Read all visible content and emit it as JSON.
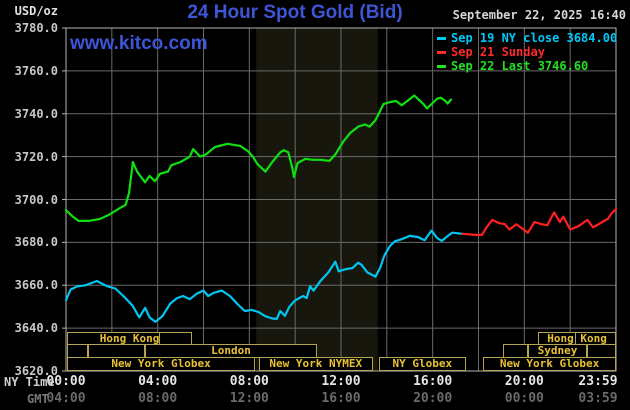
{
  "header": {
    "unit": "USD/oz",
    "title": "24 Hour Spot Gold (Bid)",
    "datetime": "September 22, 2025 16:40",
    "watermark": "www.kitco.com"
  },
  "axis": {
    "ny_time_label": "NY Time",
    "gmt_label": "GMT"
  },
  "legend": [
    {
      "label": "Sep 19 NY close 3684.00",
      "color": "#00c8f8"
    },
    {
      "label": "Sep 21 Sunday",
      "color": "#ff2a2a"
    },
    {
      "label": "Sep 22 Last 3746.60",
      "color": "#22e022"
    }
  ],
  "colors": {
    "background": "#000000",
    "title_blue": "#3e56d6",
    "grid": "#6a6a6a",
    "plot_border": "#b4b4b4",
    "session_border": "#b5a550",
    "session_text": "#e8c235",
    "nymex_band": "#17170d",
    "series_green": "#0fe00f",
    "series_cyan": "#00c6f0",
    "series_red": "#ff2020"
  },
  "chart_data": {
    "type": "line",
    "title": "24 Hour Spot Gold (Bid)",
    "xlabel": "NY Time / GMT",
    "ylabel": "USD/oz",
    "xlim": [
      0,
      24
    ],
    "ylim": [
      3620,
      3780
    ],
    "grid": true,
    "legend_position": "top-right",
    "y_ticks": [
      3780,
      3760,
      3740,
      3720,
      3700,
      3680,
      3660,
      3640,
      3620
    ],
    "x_ticks": [
      {
        "t": 0,
        "ny": "00:00",
        "gmt": "04:00"
      },
      {
        "t": 4,
        "ny": "04:00",
        "gmt": "08:00"
      },
      {
        "t": 8,
        "ny": "08:00",
        "gmt": "12:00"
      },
      {
        "t": 12,
        "ny": "12:00",
        "gmt": "16:00"
      },
      {
        "t": 16,
        "ny": "16:00",
        "gmt": "20:00"
      },
      {
        "t": 20,
        "ny": "20:00",
        "gmt": "00:00"
      },
      {
        "t": 24,
        "ny": "23:59",
        "gmt": "03:59"
      }
    ],
    "nymex_band": {
      "from": 8.3,
      "to": 13.6
    },
    "series": [
      {
        "name": "Sep 19 NY close",
        "color": "#00c6f0",
        "last": 3684.0,
        "points": [
          [
            0,
            3653
          ],
          [
            0.2,
            3658
          ],
          [
            0.5,
            3659.5
          ],
          [
            0.85,
            3660
          ],
          [
            1.35,
            3662
          ],
          [
            1.8,
            3659.5
          ],
          [
            2.15,
            3658.5
          ],
          [
            2.55,
            3654.5
          ],
          [
            2.9,
            3650.5
          ],
          [
            3.2,
            3645
          ],
          [
            3.45,
            3649.5
          ],
          [
            3.65,
            3645
          ],
          [
            3.9,
            3643
          ],
          [
            4.2,
            3645.5
          ],
          [
            4.55,
            3651.5
          ],
          [
            4.85,
            3654
          ],
          [
            5.1,
            3655
          ],
          [
            5.4,
            3653.5
          ],
          [
            5.7,
            3656
          ],
          [
            6.0,
            3657.5
          ],
          [
            6.2,
            3655
          ],
          [
            6.45,
            3656.5
          ],
          [
            6.8,
            3657.5
          ],
          [
            7.15,
            3655
          ],
          [
            7.5,
            3651
          ],
          [
            7.8,
            3648
          ],
          [
            8.1,
            3648.5
          ],
          [
            8.4,
            3647.5
          ],
          [
            8.7,
            3645.5
          ],
          [
            9.0,
            3644.5
          ],
          [
            9.2,
            3644.3
          ],
          [
            9.35,
            3648
          ],
          [
            9.55,
            3645.7
          ],
          [
            9.75,
            3650
          ],
          [
            10.0,
            3653
          ],
          [
            10.35,
            3655
          ],
          [
            10.5,
            3654
          ],
          [
            10.65,
            3659.5
          ],
          [
            10.8,
            3657.5
          ],
          [
            11.1,
            3662
          ],
          [
            11.45,
            3666
          ],
          [
            11.75,
            3671
          ],
          [
            11.9,
            3666.5
          ],
          [
            12.2,
            3667.5
          ],
          [
            12.5,
            3668
          ],
          [
            12.75,
            3670.5
          ],
          [
            12.9,
            3669.5
          ],
          [
            13.15,
            3666
          ],
          [
            13.5,
            3664
          ],
          [
            13.7,
            3668
          ],
          [
            13.9,
            3674
          ],
          [
            14.15,
            3678.5
          ],
          [
            14.35,
            3680.5
          ],
          [
            14.65,
            3681.5
          ],
          [
            15.0,
            3683
          ],
          [
            15.35,
            3682.5
          ],
          [
            15.65,
            3681
          ],
          [
            15.95,
            3685.5
          ],
          [
            16.2,
            3682
          ],
          [
            16.4,
            3680.7
          ],
          [
            16.6,
            3682.5
          ],
          [
            16.85,
            3684.5
          ],
          [
            17.3,
            3684
          ]
        ]
      },
      {
        "name": "Sep 21 Sunday",
        "color": "#ff2020",
        "points": [
          [
            17.3,
            3684
          ],
          [
            17.85,
            3683.5
          ],
          [
            18.15,
            3683.5
          ],
          [
            18.35,
            3687
          ],
          [
            18.6,
            3690.5
          ],
          [
            18.9,
            3689
          ],
          [
            19.15,
            3688.5
          ],
          [
            19.35,
            3686
          ],
          [
            19.65,
            3688.5
          ],
          [
            19.9,
            3686.5
          ],
          [
            20.15,
            3684.5
          ],
          [
            20.45,
            3689.5
          ],
          [
            20.75,
            3688.5
          ],
          [
            21.0,
            3688
          ],
          [
            21.3,
            3694
          ],
          [
            21.55,
            3689.5
          ],
          [
            21.7,
            3692
          ],
          [
            22.0,
            3686
          ],
          [
            22.35,
            3687.5
          ],
          [
            22.75,
            3690.5
          ],
          [
            23.0,
            3687
          ],
          [
            23.4,
            3689.5
          ],
          [
            23.65,
            3691
          ],
          [
            23.8,
            3693.5
          ],
          [
            24,
            3695.5
          ]
        ]
      },
      {
        "name": "Sep 22 Last",
        "color": "#0fe00f",
        "last": 3746.6,
        "points": [
          [
            0,
            3695
          ],
          [
            0.3,
            3692
          ],
          [
            0.55,
            3690
          ],
          [
            1.0,
            3690
          ],
          [
            1.5,
            3691
          ],
          [
            1.9,
            3693
          ],
          [
            2.35,
            3696
          ],
          [
            2.6,
            3697.5
          ],
          [
            2.75,
            3703
          ],
          [
            2.92,
            3717.5
          ],
          [
            3.1,
            3713
          ],
          [
            3.45,
            3708
          ],
          [
            3.65,
            3711
          ],
          [
            3.88,
            3708.5
          ],
          [
            4.1,
            3712
          ],
          [
            4.45,
            3713
          ],
          [
            4.6,
            3716
          ],
          [
            5.0,
            3717.5
          ],
          [
            5.4,
            3720
          ],
          [
            5.55,
            3723.5
          ],
          [
            5.85,
            3720
          ],
          [
            6.1,
            3721
          ],
          [
            6.5,
            3724.5
          ],
          [
            7.05,
            3726
          ],
          [
            7.6,
            3725
          ],
          [
            7.95,
            3722.5
          ],
          [
            8.15,
            3720
          ],
          [
            8.35,
            3716.5
          ],
          [
            8.7,
            3713
          ],
          [
            9.0,
            3717.5
          ],
          [
            9.35,
            3722
          ],
          [
            9.5,
            3723
          ],
          [
            9.7,
            3722
          ],
          [
            9.88,
            3714.5
          ],
          [
            9.95,
            3710.5
          ],
          [
            10.1,
            3717
          ],
          [
            10.45,
            3719
          ],
          [
            10.75,
            3718.5
          ],
          [
            11.1,
            3718.5
          ],
          [
            11.5,
            3718
          ],
          [
            11.75,
            3721
          ],
          [
            12.1,
            3727
          ],
          [
            12.4,
            3731
          ],
          [
            12.75,
            3734
          ],
          [
            13.05,
            3735
          ],
          [
            13.25,
            3734
          ],
          [
            13.5,
            3737
          ],
          [
            13.6,
            3739
          ],
          [
            13.85,
            3744.5
          ],
          [
            14.15,
            3745.5
          ],
          [
            14.4,
            3746
          ],
          [
            14.65,
            3744
          ],
          [
            14.9,
            3746
          ],
          [
            15.2,
            3748.5
          ],
          [
            15.4,
            3746.5
          ],
          [
            15.6,
            3744.5
          ],
          [
            15.75,
            3742.5
          ],
          [
            16.0,
            3745
          ],
          [
            16.2,
            3747
          ],
          [
            16.35,
            3747.5
          ],
          [
            16.55,
            3746
          ],
          [
            16.65,
            3744.8
          ],
          [
            16.8,
            3746.6
          ]
        ]
      }
    ],
    "sessions": [
      {
        "row": 0,
        "boxes": [
          {
            "from": 0.05,
            "to": 5.5,
            "label": "Hong Kong",
            "divider": 4.05
          },
          {
            "from": 20.6,
            "to": 24,
            "label": "Hong Kong",
            "divider": 22.2
          }
        ]
      },
      {
        "row": 1,
        "boxes": [
          {
            "from": 0.05,
            "to": 0.95
          },
          {
            "from": 0.95,
            "to": 3.45
          },
          {
            "from": 3.45,
            "to": 10.95,
            "label": "London"
          },
          {
            "from": 19.05,
            "to": 20.15
          },
          {
            "from": 20.15,
            "to": 22.75,
            "label": "Sydney"
          },
          {
            "from": 22.75,
            "to": 24
          }
        ]
      },
      {
        "row": 2,
        "boxes": [
          {
            "from": 0.05,
            "to": 8.25,
            "label": "New York Globex"
          },
          {
            "from": 8.4,
            "to": 13.4,
            "label": "New York NYMEX"
          },
          {
            "from": 13.65,
            "to": 17.45,
            "label": "NY Globex"
          },
          {
            "from": 18.2,
            "to": 24,
            "label": "New York Globex"
          }
        ]
      }
    ]
  }
}
